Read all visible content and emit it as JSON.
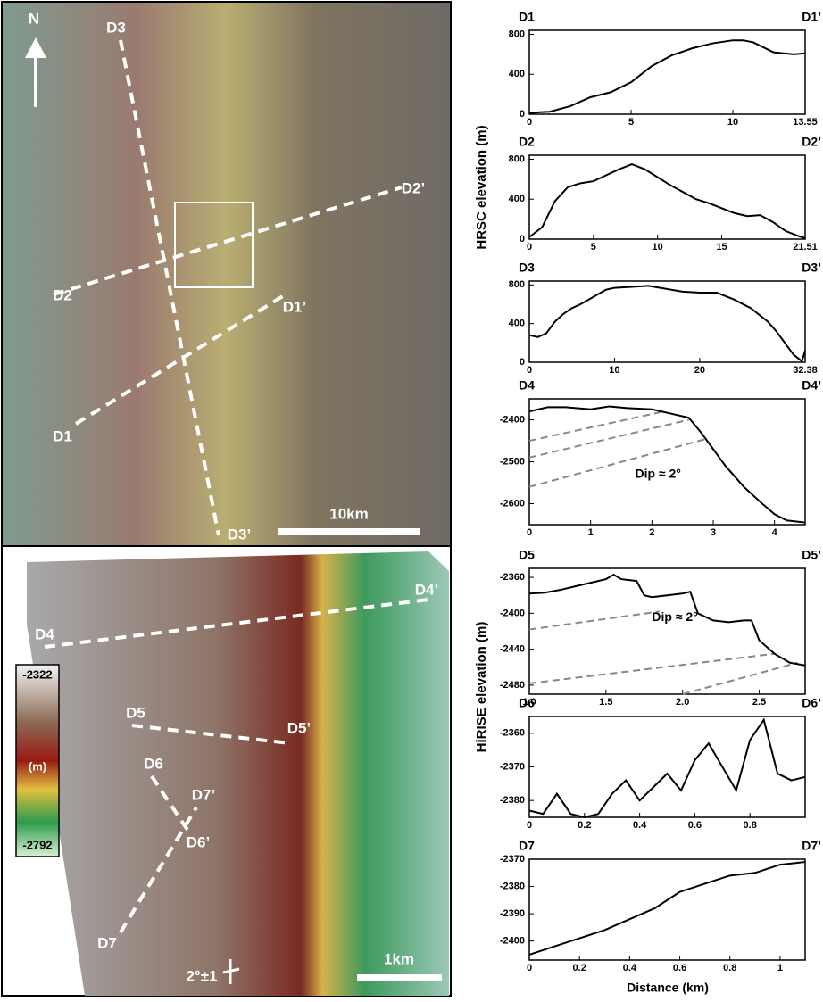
{
  "chart_data": [
    {
      "type": "line",
      "left_label": "D1",
      "right_label": "D1’",
      "x": [
        0,
        0.5,
        1,
        2,
        3,
        4,
        5,
        6,
        7,
        8,
        9,
        10,
        10.5,
        11,
        12,
        13,
        13.55
      ],
      "values": [
        10,
        20,
        25,
        80,
        170,
        220,
        320,
        480,
        590,
        660,
        710,
        740,
        740,
        720,
        620,
        600,
        610
      ],
      "xlim": [
        0,
        13.55
      ],
      "xticks": [
        0,
        5,
        10,
        13.55
      ],
      "ylim": [
        0,
        840
      ],
      "yticks": [
        0,
        400,
        800
      ],
      "color": "#000000"
    },
    {
      "type": "line",
      "left_label": "D2",
      "right_label": "D2’",
      "x": [
        0,
        1,
        2,
        3,
        4,
        5,
        6,
        7,
        8,
        9,
        10,
        11,
        12,
        13,
        14,
        15,
        16,
        17,
        18,
        19,
        20,
        21,
        21.51
      ],
      "values": [
        20,
        120,
        380,
        520,
        560,
        580,
        640,
        700,
        750,
        700,
        620,
        540,
        470,
        400,
        360,
        310,
        260,
        230,
        240,
        170,
        80,
        30,
        10
      ],
      "xlim": [
        0,
        21.51
      ],
      "xticks": [
        0,
        5,
        10,
        15,
        21.51
      ],
      "ylim": [
        0,
        840
      ],
      "yticks": [
        0,
        400,
        800
      ],
      "color": "#000000"
    },
    {
      "type": "line",
      "left_label": "D3",
      "right_label": "D3’",
      "x": [
        0,
        1,
        2,
        3,
        4,
        5,
        6,
        7,
        8,
        9,
        10,
        12,
        14,
        16,
        18,
        20,
        22,
        24,
        26,
        28,
        29,
        30,
        31,
        32,
        32.38
      ],
      "values": [
        280,
        260,
        300,
        420,
        500,
        560,
        600,
        650,
        700,
        750,
        770,
        780,
        790,
        760,
        730,
        720,
        720,
        650,
        560,
        420,
        320,
        200,
        80,
        10,
        120
      ],
      "xlim": [
        0,
        32.38
      ],
      "xticks": [
        0,
        10,
        20,
        32.38
      ],
      "ylim": [
        0,
        840
      ],
      "yticks": [
        0,
        400,
        800
      ],
      "color": "#000000"
    },
    {
      "type": "line",
      "left_label": "D4",
      "right_label": "D4’",
      "annotation": "Dip ≈ 2°",
      "x": [
        0,
        0.3,
        0.6,
        1,
        1.3,
        1.6,
        2,
        2.3,
        2.6,
        2.8,
        3,
        3.2,
        3.5,
        3.8,
        4,
        4.2,
        4.5
      ],
      "values": [
        -2380,
        -2370,
        -2370,
        -2375,
        -2368,
        -2372,
        -2375,
        -2385,
        -2395,
        -2430,
        -2470,
        -2510,
        -2560,
        -2600,
        -2625,
        -2640,
        -2645
      ],
      "xlim": [
        0,
        4.5
      ],
      "xticks": [
        0,
        1,
        2,
        3,
        4
      ],
      "ylim": [
        -2650,
        -2350
      ],
      "yticks": [
        -2400,
        -2500,
        -2600
      ],
      "color": "#000000",
      "dip_lines": [
        {
          "x": [
            0,
            2.2
          ],
          "y": [
            -2450,
            -2380
          ]
        },
        {
          "x": [
            0,
            2.6
          ],
          "y": [
            -2490,
            -2400
          ]
        },
        {
          "x": [
            0,
            2.9
          ],
          "y": [
            -2560,
            -2445
          ]
        }
      ]
    },
    {
      "type": "line",
      "left_label": "D5",
      "right_label": "D5’",
      "annotation": "Dip ≈ 2°",
      "x": [
        1.0,
        1.1,
        1.2,
        1.3,
        1.4,
        1.5,
        1.55,
        1.6,
        1.7,
        1.75,
        1.8,
        1.9,
        2.0,
        2.05,
        2.1,
        2.2,
        2.3,
        2.4,
        2.45,
        2.5,
        2.6,
        2.7,
        2.8
      ],
      "values": [
        -2378,
        -2377,
        -2374,
        -2370,
        -2366,
        -2362,
        -2357,
        -2362,
        -2364,
        -2380,
        -2382,
        -2380,
        -2378,
        -2376,
        -2400,
        -2408,
        -2410,
        -2408,
        -2408,
        -2430,
        -2445,
        -2455,
        -2458
      ],
      "xlim": [
        1.0,
        2.8
      ],
      "xticks": [
        {
          "value": 1,
          "label": "1.0"
        },
        1.5,
        {
          "value": 2,
          "label": "2.0"
        },
        2.5
      ],
      "ylim": [
        -2490,
        -2350
      ],
      "yticks": [
        -2360,
        -2400,
        -2440,
        -2480
      ],
      "color": "#000000",
      "dip_lines": [
        {
          "x": [
            1.0,
            1.85
          ],
          "y": [
            -2418,
            -2398
          ]
        },
        {
          "x": [
            1.0,
            2.6
          ],
          "y": [
            -2478,
            -2445
          ]
        },
        {
          "x": [
            2.0,
            2.75
          ],
          "y": [
            -2490,
            -2455
          ]
        }
      ]
    },
    {
      "type": "line",
      "left_label": "D6",
      "right_label": "D6’",
      "x": [
        0,
        0.05,
        0.1,
        0.15,
        0.2,
        0.25,
        0.3,
        0.35,
        0.4,
        0.45,
        0.5,
        0.55,
        0.6,
        0.65,
        0.7,
        0.75,
        0.8,
        0.85,
        0.9,
        0.95,
        1.0
      ],
      "values": [
        -2383,
        -2384,
        -2378,
        -2384,
        -2385,
        -2384,
        -2378,
        -2374,
        -2380,
        -2376,
        -2372,
        -2377,
        -2368,
        -2363,
        -2370,
        -2377,
        -2362,
        -2356,
        -2372,
        -2374,
        -2373
      ],
      "xlim": [
        0,
        1.0
      ],
      "xticks": [
        0,
        0.2,
        0.4,
        0.6,
        0.8
      ],
      "ylim": [
        -2385,
        -2355
      ],
      "yticks": [
        -2360,
        -2370,
        -2380
      ],
      "color": "#000000"
    },
    {
      "type": "line",
      "left_label": "D7",
      "right_label": "D7’",
      "x": [
        0,
        0.1,
        0.2,
        0.3,
        0.4,
        0.5,
        0.6,
        0.7,
        0.8,
        0.9,
        1.0,
        1.1
      ],
      "values": [
        -2405,
        -2402,
        -2399,
        -2396,
        -2392,
        -2388,
        -2382,
        -2379,
        -2376,
        -2375,
        -2372,
        -2371
      ],
      "xlim": [
        0,
        1.1
      ],
      "xticks": [
        0,
        0.2,
        0.4,
        0.6,
        0.8,
        1
      ],
      "ylim": [
        -2407,
        -2370
      ],
      "yticks": [
        -2370,
        -2380,
        -2390,
        -2400
      ],
      "color": "#000000"
    }
  ],
  "shared_labels": {
    "hrsc_ylabel": "HRSC elevation (m)",
    "hirise_ylabel": "HiRISE elevation (m)",
    "xlabel": "Distance (km)"
  },
  "maps": {
    "north": "N",
    "top_labels": [
      "D3",
      "D2’",
      "D2",
      "D1’",
      "D1",
      "D3’"
    ],
    "top_scale": "10km",
    "bottom_labels": [
      "D4’",
      "D4",
      "D5",
      "D5’",
      "D6",
      "D7’",
      "D6’",
      "D7"
    ],
    "bottom_scale": "1km",
    "strike": "2°±1",
    "colorbar": {
      "max": "-2322",
      "unit": "(m)",
      "min": "-2792"
    }
  }
}
